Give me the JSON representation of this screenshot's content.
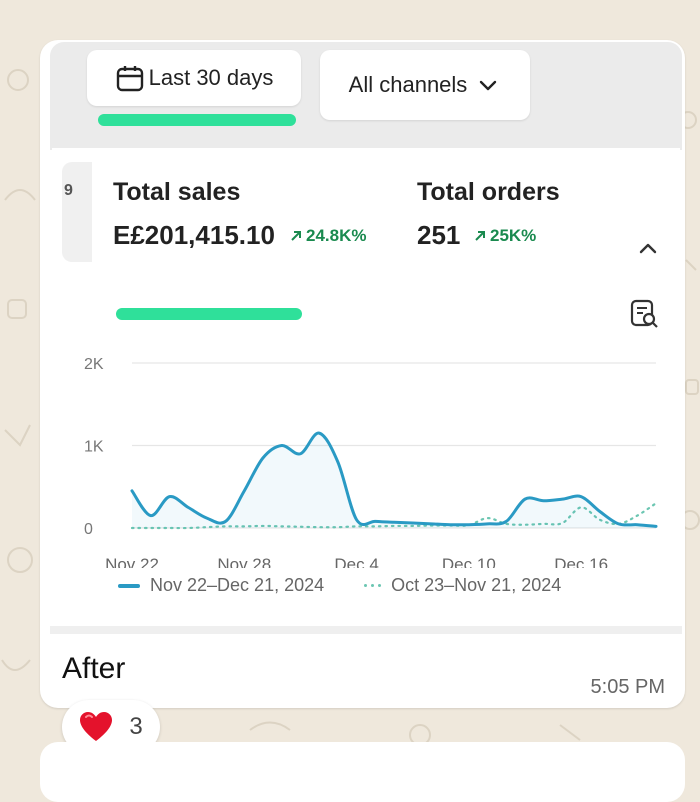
{
  "filters": {
    "date_label": "Last 30 days",
    "channel_label": "All channels"
  },
  "summary": {
    "left_tab_glyph": "9",
    "total_sales": {
      "label": "Total sales",
      "value": "E£201,415.10",
      "change": "24.8K%"
    },
    "total_orders": {
      "label": "Total orders",
      "value": "251",
      "change": "25K%"
    }
  },
  "chart_data": {
    "type": "line",
    "y_ticks": [
      "2K",
      "1K",
      "0"
    ],
    "ylim": [
      0,
      2000
    ],
    "x_tick_labels": [
      "Nov 22",
      "Nov 28",
      "Dec 4",
      "Dec 10",
      "Dec 16"
    ],
    "x_tick_index": [
      0,
      6,
      12,
      18,
      24
    ],
    "grid": true,
    "legend_position": "bottom",
    "series": [
      {
        "name": "Nov 22–Dec 21, 2024",
        "style": "solid",
        "color": "#2a9ac4",
        "values": [
          450,
          150,
          380,
          250,
          120,
          80,
          450,
          850,
          1000,
          900,
          1150,
          800,
          100,
          80,
          70,
          60,
          50,
          40,
          40,
          50,
          80,
          350,
          330,
          350,
          380,
          200,
          50,
          40,
          20
        ]
      },
      {
        "name": "Oct 23–Nov 21, 2024",
        "style": "dotted",
        "color": "#6cc6b2",
        "values": [
          0,
          0,
          0,
          0,
          10,
          20,
          20,
          25,
          20,
          15,
          10,
          10,
          20,
          20,
          25,
          25,
          30,
          30,
          35,
          120,
          50,
          40,
          50,
          60,
          250,
          100,
          50,
          150,
          300
        ]
      }
    ]
  },
  "message": {
    "caption": "After",
    "time": "5:05 PM"
  },
  "reaction": {
    "emoji": "heart",
    "count": "3"
  },
  "colors": {
    "highlight": "#2fe09a",
    "positive": "#1a8a4f",
    "series_current": "#2a9ac4",
    "series_previous": "#6cc6b2"
  }
}
